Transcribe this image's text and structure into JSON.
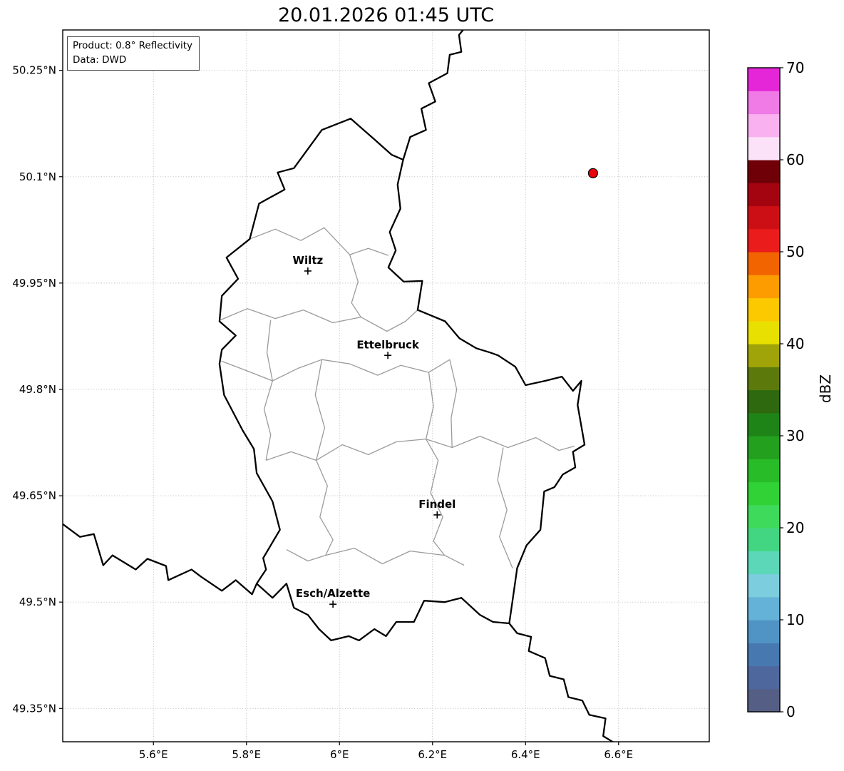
{
  "title": "20.01.2026 01:45 UTC",
  "annotation": {
    "product": "Product: 0.8° Reflectivity",
    "source": "Data: DWD"
  },
  "axes": {
    "lon_range": [
      5.405,
      6.795
    ],
    "lat_range": [
      49.303,
      50.307
    ],
    "x_ticks": [
      {
        "value": 5.6,
        "label": "5.6°E"
      },
      {
        "value": 5.8,
        "label": "5.8°E"
      },
      {
        "value": 6.0,
        "label": "6°E"
      },
      {
        "value": 6.2,
        "label": "6.2°E"
      },
      {
        "value": 6.4,
        "label": "6.4°E"
      },
      {
        "value": 6.6,
        "label": "6.6°E"
      }
    ],
    "y_ticks": [
      {
        "value": 50.25,
        "label": "50.25°N"
      },
      {
        "value": 50.1,
        "label": "50.1°N"
      },
      {
        "value": 49.95,
        "label": "49.95°N"
      },
      {
        "value": 49.8,
        "label": "49.8°N"
      },
      {
        "value": 49.65,
        "label": "49.65°N"
      },
      {
        "value": 49.5,
        "label": "49.5°N"
      },
      {
        "value": 49.35,
        "label": "49.35°N"
      }
    ]
  },
  "cities": [
    {
      "name": "Wiltz",
      "lon": 5.932,
      "lat": 49.967
    },
    {
      "name": "Ettelbruck",
      "lon": 6.104,
      "lat": 49.848
    },
    {
      "name": "Findel",
      "lon": 6.21,
      "lat": 49.623
    },
    {
      "name": "Esch/Alzette",
      "lon": 5.986,
      "lat": 49.497
    }
  ],
  "radar_marker": {
    "lon": 6.545,
    "lat": 50.105,
    "fill": "#e8000b",
    "edge": "#000000"
  },
  "colorbar": {
    "label": "dBZ",
    "min": 0,
    "max": 70,
    "tick_values": [
      0,
      10,
      20,
      30,
      40,
      50,
      60,
      70
    ],
    "colors_bottom_to_top": [
      "#555e84",
      "#4e689e",
      "#4878b0",
      "#5094c6",
      "#64b2d8",
      "#7ccede",
      "#5cd8b8",
      "#42d682",
      "#3eda5c",
      "#30d236",
      "#28bc28",
      "#22a01e",
      "#1e8418",
      "#2e680f",
      "#5c7a0c",
      "#a0a408",
      "#e8e000",
      "#fcc800",
      "#fc9c00",
      "#f26400",
      "#ea1c1c",
      "#cc0f14",
      "#a40410",
      "#700008",
      "#fce2f8",
      "#f9b2ef",
      "#f07ae6",
      "#e526d8"
    ]
  },
  "map": {
    "border_color": "#000000",
    "canton_color": "#9b9b9b",
    "country_border": [
      [
        6.024,
        50.182
      ],
      [
        6.071,
        50.155
      ],
      [
        6.112,
        50.131
      ],
      [
        6.137,
        50.124
      ],
      [
        6.125,
        50.089
      ],
      [
        6.131,
        50.055
      ],
      [
        6.108,
        50.022
      ],
      [
        6.121,
        49.996
      ],
      [
        6.105,
        49.972
      ],
      [
        6.138,
        49.952
      ],
      [
        6.178,
        49.953
      ],
      [
        6.168,
        49.912
      ],
      [
        6.227,
        49.896
      ],
      [
        6.258,
        49.872
      ],
      [
        6.294,
        49.858
      ],
      [
        6.324,
        49.852
      ],
      [
        6.341,
        49.848
      ],
      [
        6.378,
        49.832
      ],
      [
        6.4,
        49.806
      ],
      [
        6.442,
        49.812
      ],
      [
        6.478,
        49.818
      ],
      [
        6.502,
        49.798
      ],
      [
        6.52,
        49.812
      ],
      [
        6.512,
        49.778
      ],
      [
        6.527,
        49.722
      ],
      [
        6.502,
        49.712
      ],
      [
        6.507,
        49.69
      ],
      [
        6.48,
        49.68
      ],
      [
        6.462,
        49.662
      ],
      [
        6.44,
        49.656
      ],
      [
        6.432,
        49.602
      ],
      [
        6.402,
        49.58
      ],
      [
        6.382,
        49.548
      ],
      [
        6.372,
        49.502
      ],
      [
        6.365,
        49.47
      ],
      [
        6.33,
        49.472
      ],
      [
        6.302,
        49.482
      ],
      [
        6.262,
        49.506
      ],
      [
        6.226,
        49.5
      ],
      [
        6.182,
        49.502
      ],
      [
        6.16,
        49.472
      ],
      [
        6.122,
        49.472
      ],
      [
        6.1,
        49.452
      ],
      [
        6.075,
        49.462
      ],
      [
        6.042,
        49.446
      ],
      [
        6.02,
        49.452
      ],
      [
        5.982,
        49.446
      ],
      [
        5.956,
        49.462
      ],
      [
        5.932,
        49.482
      ],
      [
        5.902,
        49.492
      ],
      [
        5.886,
        49.526
      ],
      [
        5.856,
        49.506
      ],
      [
        5.822,
        49.526
      ],
      [
        5.842,
        49.546
      ],
      [
        5.836,
        49.562
      ],
      [
        5.872,
        49.602
      ],
      [
        5.856,
        49.642
      ],
      [
        5.822,
        49.682
      ],
      [
        5.816,
        49.716
      ],
      [
        5.792,
        49.742
      ],
      [
        5.752,
        49.792
      ],
      [
        5.742,
        49.836
      ],
      [
        5.747,
        49.856
      ],
      [
        5.777,
        49.876
      ],
      [
        5.742,
        49.896
      ],
      [
        5.747,
        49.932
      ],
      [
        5.782,
        49.956
      ],
      [
        5.757,
        49.986
      ],
      [
        5.807,
        50.012
      ],
      [
        5.827,
        50.062
      ],
      [
        5.882,
        50.082
      ],
      [
        5.867,
        50.106
      ],
      [
        5.902,
        50.112
      ],
      [
        5.962,
        50.166
      ]
    ],
    "neighbor_borders": [
      [
        [
          6.137,
          50.124
        ],
        [
          6.152,
          50.156
        ],
        [
          6.186,
          50.166
        ],
        [
          6.176,
          50.196
        ],
        [
          6.206,
          50.206
        ],
        [
          6.192,
          50.232
        ],
        [
          6.232,
          50.246
        ],
        [
          6.237,
          50.272
        ],
        [
          6.262,
          50.276
        ],
        [
          6.257,
          50.3
        ],
        [
          6.272,
          50.312
        ]
      ],
      [
        [
          5.405,
          49.61
        ],
        [
          5.442,
          49.592
        ],
        [
          5.472,
          49.596
        ],
        [
          5.492,
          49.552
        ],
        [
          5.512,
          49.566
        ],
        [
          5.562,
          49.546
        ],
        [
          5.587,
          49.561
        ],
        [
          5.627,
          49.551
        ],
        [
          5.632,
          49.531
        ],
        [
          5.682,
          49.546
        ],
        [
          5.702,
          49.536
        ],
        [
          5.747,
          49.516
        ],
        [
          5.777,
          49.531
        ],
        [
          5.812,
          49.511
        ],
        [
          5.822,
          49.526
        ]
      ],
      [
        [
          6.365,
          49.47
        ],
        [
          6.382,
          49.456
        ],
        [
          6.412,
          49.451
        ],
        [
          6.407,
          49.431
        ],
        [
          6.442,
          49.421
        ],
        [
          6.452,
          49.396
        ],
        [
          6.482,
          49.391
        ],
        [
          6.492,
          49.366
        ],
        [
          6.522,
          49.361
        ],
        [
          6.537,
          49.341
        ],
        [
          6.572,
          49.336
        ],
        [
          6.567,
          49.311
        ],
        [
          6.592,
          49.301
        ],
        [
          6.6,
          49.29
        ]
      ]
    ],
    "canton_borders": [
      [
        [
          5.807,
          50.012
        ],
        [
          5.862,
          50.026
        ],
        [
          5.917,
          50.01
        ],
        [
          5.967,
          50.028
        ],
        [
          6.022,
          49.99
        ],
        [
          6.062,
          49.999
        ],
        [
          6.105,
          49.989
        ]
      ],
      [
        [
          6.022,
          49.99
        ],
        [
          6.04,
          49.952
        ],
        [
          6.026,
          49.922
        ],
        [
          6.046,
          49.902
        ]
      ],
      [
        [
          5.744,
          49.898
        ],
        [
          5.802,
          49.914
        ],
        [
          5.862,
          49.9
        ],
        [
          5.922,
          49.912
        ],
        [
          5.986,
          49.894
        ],
        [
          6.046,
          49.902
        ],
        [
          6.102,
          49.882
        ],
        [
          6.142,
          49.896
        ],
        [
          6.168,
          49.912
        ]
      ],
      [
        [
          5.852,
          49.898
        ],
        [
          5.844,
          49.852
        ],
        [
          5.856,
          49.812
        ],
        [
          5.838,
          49.772
        ],
        [
          5.852,
          49.736
        ],
        [
          5.842,
          49.7
        ]
      ],
      [
        [
          5.746,
          49.84
        ],
        [
          5.802,
          49.826
        ],
        [
          5.856,
          49.812
        ],
        [
          5.912,
          49.83
        ],
        [
          5.962,
          49.842
        ],
        [
          6.022,
          49.836
        ],
        [
          6.082,
          49.82
        ],
        [
          6.132,
          49.834
        ],
        [
          6.192,
          49.824
        ],
        [
          6.237,
          49.842
        ]
      ],
      [
        [
          5.962,
          49.842
        ],
        [
          5.948,
          49.792
        ],
        [
          5.968,
          49.746
        ],
        [
          5.95,
          49.7
        ]
      ],
      [
        [
          5.95,
          49.7
        ],
        [
          5.974,
          49.664
        ],
        [
          5.958,
          49.62
        ],
        [
          5.986,
          49.588
        ],
        [
          5.97,
          49.566
        ]
      ],
      [
        [
          6.192,
          49.824
        ],
        [
          6.202,
          49.776
        ],
        [
          6.186,
          49.73
        ],
        [
          6.212,
          49.7
        ],
        [
          6.196,
          49.654
        ],
        [
          6.222,
          49.62
        ],
        [
          6.202,
          49.586
        ],
        [
          6.226,
          49.566
        ]
      ],
      [
        [
          5.842,
          49.7
        ],
        [
          5.896,
          49.712
        ],
        [
          5.95,
          49.7
        ]
      ],
      [
        [
          5.886,
          49.574
        ],
        [
          5.932,
          49.558
        ],
        [
          5.97,
          49.566
        ],
        [
          6.032,
          49.576
        ],
        [
          6.092,
          49.554
        ],
        [
          6.152,
          49.572
        ],
        [
          6.226,
          49.566
        ],
        [
          6.268,
          49.552
        ]
      ],
      [
        [
          6.186,
          49.73
        ],
        [
          6.242,
          49.718
        ],
        [
          6.302,
          49.734
        ],
        [
          6.362,
          49.718
        ],
        [
          6.422,
          49.732
        ],
        [
          6.472,
          49.714
        ],
        [
          6.505,
          49.72
        ]
      ],
      [
        [
          6.237,
          49.842
        ],
        [
          6.252,
          49.8
        ],
        [
          6.24,
          49.76
        ],
        [
          6.242,
          49.718
        ]
      ],
      [
        [
          6.352,
          49.718
        ],
        [
          6.34,
          49.672
        ],
        [
          6.36,
          49.63
        ],
        [
          6.344,
          49.592
        ],
        [
          6.372,
          49.548
        ]
      ],
      [
        [
          5.95,
          49.7
        ],
        [
          6.006,
          49.722
        ],
        [
          6.062,
          49.708
        ],
        [
          6.122,
          49.726
        ],
        [
          6.186,
          49.73
        ]
      ]
    ]
  }
}
